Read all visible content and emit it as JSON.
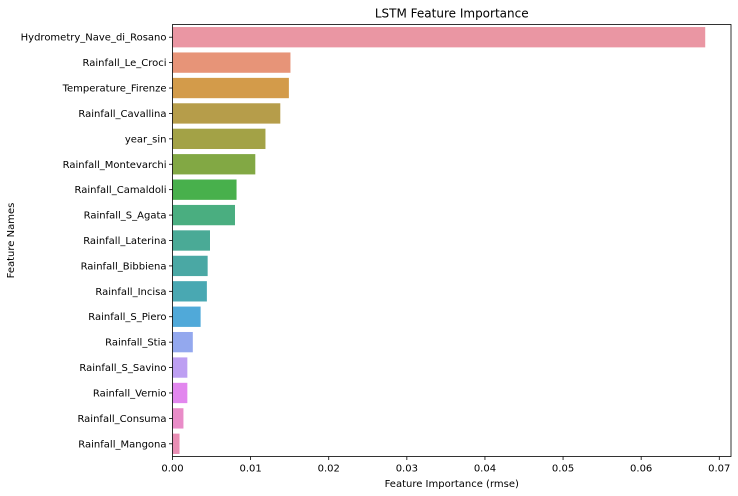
{
  "chart_data": {
    "type": "bar",
    "orientation": "horizontal",
    "title": "LSTM Feature Importance",
    "xlabel": "Feature Importance (rmse)",
    "ylabel": "Feature Names",
    "xlim": [
      0,
      0.0715
    ],
    "xticks": [
      "0.00",
      "0.01",
      "0.02",
      "0.03",
      "0.04",
      "0.05",
      "0.06",
      "0.07"
    ],
    "grid": false,
    "categories": [
      "Hydrometry_Nave_di_Rosano",
      "Rainfall_Le_Croci",
      "Temperature_Firenze",
      "Rainfall_Cavallina",
      "year_sin",
      "Rainfall_Montevarchi",
      "Rainfall_Camaldoli",
      "Rainfall_S_Agata",
      "Rainfall_Laterina",
      "Rainfall_Bibbiena",
      "Rainfall_Incisa",
      "Rainfall_S_Piero",
      "Rainfall_Stia",
      "Rainfall_S_Savino",
      "Rainfall_Vernio",
      "Rainfall_Consuma",
      "Rainfall_Mangona"
    ],
    "values": [
      0.0682,
      0.0151,
      0.0149,
      0.0138,
      0.0119,
      0.0106,
      0.0082,
      0.008,
      0.0048,
      0.0045,
      0.0044,
      0.0036,
      0.0026,
      0.0019,
      0.0019,
      0.0014,
      0.0009
    ],
    "colors": [
      "#ea96a3",
      "#e79478",
      "#d39b4a",
      "#b69d4a",
      "#a3a246",
      "#82a844",
      "#48b04c",
      "#4aae80",
      "#4aaa96",
      "#4aa8a4",
      "#49a8b2",
      "#50a9d9",
      "#93a8ee",
      "#bd9ff2",
      "#e287ee",
      "#e98cc8",
      "#e98eb4"
    ]
  }
}
